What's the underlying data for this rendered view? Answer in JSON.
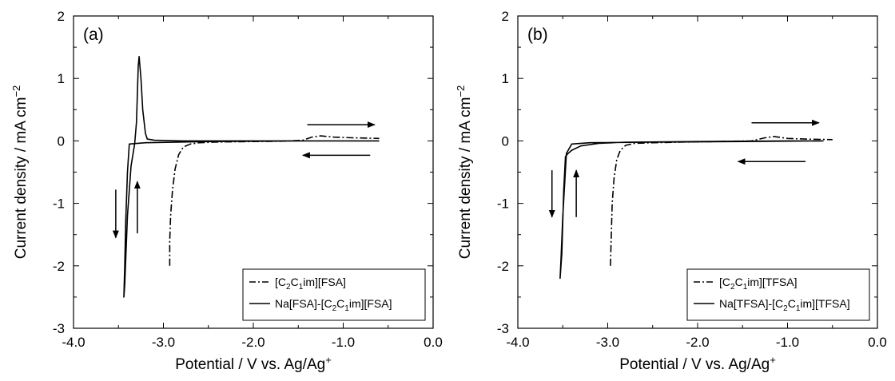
{
  "chart_data": [
    {
      "type": "line",
      "panel_label": "(a)",
      "xlabel": "Potential / V vs. Ag/Ag",
      "xlabel_sup": "+",
      "ylabel": "Current density / mA cm",
      "ylabel_sup": "−2",
      "xlim": [
        -4.0,
        0.0
      ],
      "ylim": [
        -3,
        2
      ],
      "xticks": [
        "-4.0",
        "-3.0",
        "-2.0",
        "-1.0",
        "0.0"
      ],
      "xtick_values": [
        -4.0,
        -3.0,
        -2.0,
        -1.0,
        0.0
      ],
      "yticks": [
        "-3",
        "-2",
        "-1",
        "0",
        "1",
        "2"
      ],
      "ytick_values": [
        -3,
        -2,
        -1,
        0,
        1,
        2
      ],
      "grid": false,
      "legend_position": "bottom-right",
      "series": [
        {
          "name": "[C2C1im][FSA]",
          "legend_base1": "[C",
          "legend_sub1": "2",
          "legend_base2": "C",
          "legend_sub2": "1",
          "legend_rest": "im][FSA]",
          "style": "dash-dot",
          "x": [
            -2.93,
            -2.93,
            -2.92,
            -2.9,
            -2.87,
            -2.83,
            -2.78,
            -2.7,
            -2.6,
            -2.45,
            -2.3,
            -2.0,
            -1.7,
            -1.45,
            -1.35,
            -1.25,
            -1.1,
            -0.9,
            -0.6
          ],
          "y": [
            -2.0,
            -1.6,
            -1.2,
            -0.8,
            -0.45,
            -0.22,
            -0.1,
            -0.05,
            -0.03,
            -0.02,
            -0.015,
            -0.01,
            -0.005,
            0.01,
            0.06,
            0.08,
            0.06,
            0.05,
            0.04
          ]
        },
        {
          "name": "Na[FSA]-[C2C1im][FSA]",
          "legend_pre": "Na[FSA]-",
          "legend_base1": "[C",
          "legend_sub1": "2",
          "legend_base2": "C",
          "legend_sub2": "1",
          "legend_rest": "im][FSA]",
          "style": "solid",
          "x": [
            -0.6,
            -1.5,
            -2.5,
            -3.2,
            -3.38,
            -3.4,
            -3.42,
            -3.43,
            -3.44,
            -3.43,
            -3.4,
            -3.36,
            -3.32,
            -3.3,
            -3.28,
            -3.27,
            -3.25,
            -3.23,
            -3.2,
            -3.18,
            -3.1,
            -2.8,
            -2.0,
            -1.0,
            -0.6
          ],
          "y": [
            0.0,
            0.0,
            -0.01,
            -0.03,
            -0.05,
            -0.5,
            -1.3,
            -2.0,
            -2.5,
            -2.3,
            -1.2,
            -0.4,
            -0.05,
            0.3,
            1.2,
            1.35,
            1.0,
            0.5,
            0.12,
            0.03,
            0.01,
            0.0,
            0.0,
            0.0,
            0.0
          ]
        }
      ],
      "arrows": [
        {
          "from": [
            -1.4,
            0.26
          ],
          "to": [
            -0.65,
            0.26
          ]
        },
        {
          "from": [
            -0.7,
            -0.23
          ],
          "to": [
            -1.45,
            -0.23
          ]
        },
        {
          "from": [
            -3.53,
            -0.78
          ],
          "to": [
            -3.53,
            -1.55
          ]
        },
        {
          "from": [
            -3.29,
            -1.48
          ],
          "to": [
            -3.29,
            -0.65
          ]
        }
      ]
    },
    {
      "type": "line",
      "panel_label": "(b)",
      "xlabel": "Potential / V vs. Ag/Ag",
      "xlabel_sup": "+",
      "ylabel": "Current density / mA cm",
      "ylabel_sup": "−2",
      "xlim": [
        -4.0,
        0.0
      ],
      "ylim": [
        -3,
        2
      ],
      "xticks": [
        "-4.0",
        "-3.0",
        "-2.0",
        "-1.0",
        "0.0"
      ],
      "xtick_values": [
        -4.0,
        -3.0,
        -2.0,
        -1.0,
        0.0
      ],
      "yticks": [
        "-3",
        "-2",
        "-1",
        "0",
        "1",
        "2"
      ],
      "ytick_values": [
        -3,
        -2,
        -1,
        0,
        1,
        2
      ],
      "grid": false,
      "legend_position": "bottom-right",
      "series": [
        {
          "name": "[C2C1im][TFSA]",
          "legend_base1": "[C",
          "legend_sub1": "2",
          "legend_base2": "C",
          "legend_sub2": "1",
          "legend_rest": "im][TFSA]",
          "style": "dash-dot",
          "x": [
            -2.97,
            -2.96,
            -2.95,
            -2.93,
            -2.9,
            -2.86,
            -2.8,
            -2.7,
            -2.5,
            -2.2,
            -1.8,
            -1.4,
            -1.25,
            -1.15,
            -1.0,
            -0.8,
            -0.5
          ],
          "y": [
            -2.0,
            -1.5,
            -1.0,
            -0.6,
            -0.3,
            -0.15,
            -0.07,
            -0.04,
            -0.03,
            -0.02,
            -0.01,
            0.0,
            0.05,
            0.07,
            0.04,
            0.03,
            0.02
          ]
        },
        {
          "name": "Na[TFSA]-[C2C1im][TFSA]",
          "legend_pre": "Na[TFSA]-",
          "legend_base1": "[C",
          "legend_sub1": "2",
          "legend_base2": "C",
          "legend_sub2": "1",
          "legend_rest": "im][TFSA]",
          "style": "solid",
          "x": [
            -0.6,
            -1.5,
            -2.5,
            -3.2,
            -3.4,
            -3.46,
            -3.5,
            -3.52,
            -3.53,
            -3.51,
            -3.49,
            -3.47,
            -3.44,
            -3.4,
            -3.3,
            -3.1,
            -2.8,
            -2.0,
            -1.0,
            -0.6
          ],
          "y": [
            0.0,
            -0.01,
            -0.02,
            -0.03,
            -0.05,
            -0.2,
            -1.2,
            -1.9,
            -2.2,
            -1.8,
            -0.8,
            -0.25,
            -0.2,
            -0.15,
            -0.08,
            -0.04,
            -0.02,
            -0.01,
            0.0,
            0.0
          ]
        }
      ],
      "arrows": [
        {
          "from": [
            -1.4,
            0.29
          ],
          "to": [
            -0.65,
            0.29
          ]
        },
        {
          "from": [
            -0.8,
            -0.33
          ],
          "to": [
            -1.55,
            -0.33
          ]
        },
        {
          "from": [
            -3.62,
            -0.47
          ],
          "to": [
            -3.62,
            -1.22
          ]
        },
        {
          "from": [
            -3.35,
            -1.22
          ],
          "to": [
            -3.35,
            -0.47
          ]
        }
      ]
    }
  ]
}
